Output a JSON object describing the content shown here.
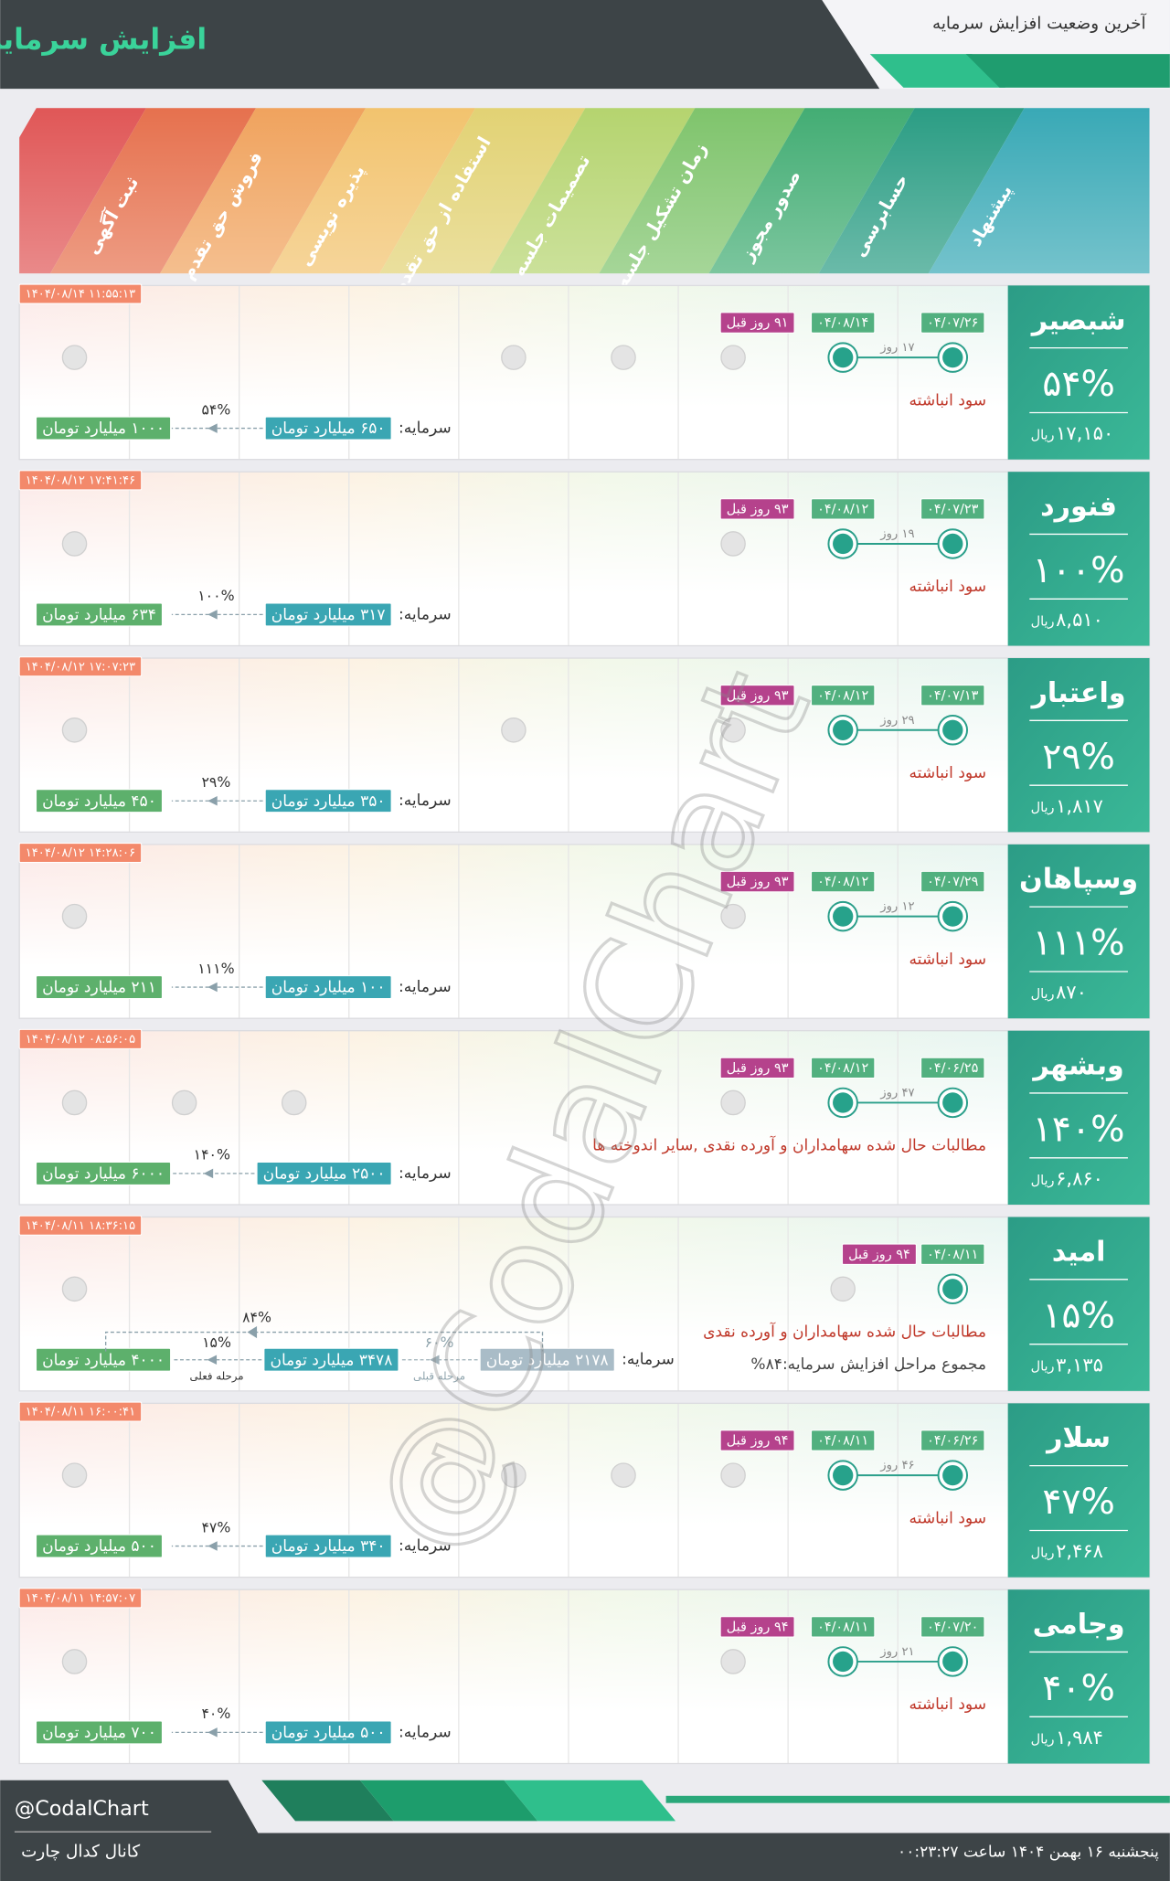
{
  "header": {
    "title": "افزایش سرمایه",
    "subtitle": "آخرین وضعیت افزایش سرمایه"
  },
  "stages": [
    "ثبت آگهی",
    "فروش حق تقدم",
    "پذیره نویسی",
    "استفاده از حق تقدم",
    "تصمیمات جلسه",
    "زمان تشکیل جلسه",
    "صدور مجوز",
    "حسابرسی",
    "پیشنهاد"
  ],
  "capital_label": "سرمایه:",
  "price_unit": "ریال",
  "watermark": "@CodalChart",
  "companies": [
    {
      "name": "شبصیر",
      "percent": "۵۴%",
      "price": "۱۷,۱۵۰",
      "timestamp": "۱۴۰۴/۰۸/۱۴ ۱۱:۵۵:۱۳",
      "start_date": "۰۴/۰۷/۲۶",
      "end_date": "۰۴/۰۸/۱۴",
      "ago": "۹۱ روز قبل",
      "days": "۱۷ روز",
      "source": "سود انباشته",
      "capital": {
        "from": "۶۵۰ میلیارد تومان",
        "to": "۱۰۰۰ میلیارد تومان",
        "percent": "۵۴%"
      }
    },
    {
      "name": "فنورد",
      "percent": "۱۰۰%",
      "price": "۸,۵۱۰",
      "timestamp": "۱۴۰۴/۰۸/۱۲ ۱۷:۴۱:۴۶",
      "start_date": "۰۴/۰۷/۲۳",
      "end_date": "۰۴/۰۸/۱۲",
      "ago": "۹۳ روز قبل",
      "days": "۱۹ روز",
      "source": "سود انباشته",
      "capital": {
        "from": "۳۱۷ میلیارد تومان",
        "to": "۶۳۴ میلیارد تومان",
        "percent": "۱۰۰%"
      }
    },
    {
      "name": "واعتبار",
      "percent": "۲۹%",
      "price": "۱,۸۱۷",
      "timestamp": "۱۴۰۴/۰۸/۱۲ ۱۷:۰۷:۲۳",
      "start_date": "۰۴/۰۷/۱۳",
      "end_date": "۰۴/۰۸/۱۲",
      "ago": "۹۳ روز قبل",
      "days": "۲۹ روز",
      "source": "سود انباشته",
      "capital": {
        "from": "۳۵۰ میلیارد تومان",
        "to": "۴۵۰ میلیارد تومان",
        "percent": "۲۹%"
      }
    },
    {
      "name": "وسپاهان",
      "percent": "۱۱۱%",
      "price": "۸۷۰",
      "timestamp": "۱۴۰۴/۰۸/۱۲ ۱۴:۲۸:۰۶",
      "start_date": "۰۴/۰۷/۲۹",
      "end_date": "۰۴/۰۸/۱۲",
      "ago": "۹۳ روز قبل",
      "days": "۱۲ روز",
      "source": "سود انباشته",
      "capital": {
        "from": "۱۰۰ میلیارد تومان",
        "to": "۲۱۱ میلیارد تومان",
        "percent": "۱۱۱%"
      }
    },
    {
      "name": "وبشهر",
      "percent": "۱۴۰%",
      "price": "۶,۸۶۰",
      "timestamp": "۱۴۰۴/۰۸/۱۲ ۰۸:۵۶:۰۵",
      "start_date": "۰۴/۰۶/۲۵",
      "end_date": "۰۴/۰۸/۱۲",
      "ago": "۹۳ روز قبل",
      "days": "۴۷ روز",
      "source": "مطالبات حال شده سهامداران و آورده نقدی ,سایر اندوخته ها",
      "capital": {
        "from": "۲۵۰۰ میلیارد تومان",
        "to": "۶۰۰۰ میلیارد تومان",
        "percent": "۱۴۰%"
      }
    },
    {
      "name": "امید",
      "percent": "۱۵%",
      "price": "۳,۱۳۵",
      "timestamp": "۱۴۰۴/۰۸/۱۱ ۱۸:۳۶:۱۵",
      "start_date": "۰۴/۰۸/۱۱",
      "ago": "۹۴ روز قبل",
      "source": "مطالبات حال شده سهامداران و آورده نقدی",
      "total_note": "مجموع مراحل افزایش سرمایه:۸۴%",
      "capital": {
        "stages": [
          "۲۱۷۸ میلیارد تومان",
          "۳۴۷۸ میلیارد تومان",
          "۴۰۰۰ میلیارد تومان"
        ],
        "steps": [
          {
            "percent": "۶۰%",
            "label": "مرحله قبلی"
          },
          {
            "percent": "۱۵%",
            "label": "مرحله فعلی"
          }
        ],
        "total_percent": "۸۴%"
      }
    },
    {
      "name": "سلار",
      "percent": "۴۷%",
      "price": "۲,۴۶۸",
      "timestamp": "۱۴۰۴/۰۸/۱۱ ۱۶:۰۰:۴۱",
      "start_date": "۰۴/۰۶/۲۶",
      "end_date": "۰۴/۰۸/۱۱",
      "ago": "۹۴ روز قبل",
      "days": "۴۶ روز",
      "source": "سود انباشته",
      "capital": {
        "from": "۳۴۰ میلیارد تومان",
        "to": "۵۰۰ میلیارد تومان",
        "percent": "۴۷%"
      }
    },
    {
      "name": "وجامی",
      "percent": "۴۰%",
      "price": "۱,۹۸۴",
      "timestamp": "۱۴۰۴/۰۸/۱۱ ۱۴:۵۷:۰۷",
      "start_date": "۰۴/۰۷/۲۰",
      "end_date": "۰۴/۰۸/۱۱",
      "ago": "۹۴ روز قبل",
      "days": "۲۱ روز",
      "source": "سود انباشته",
      "capital": {
        "from": "۵۰۰ میلیارد تومان",
        "to": "۷۰۰ میلیارد تومان",
        "percent": "۴۰%"
      }
    }
  ],
  "footer": {
    "handle": "@CodalChart",
    "channel": "کانال کدال چارت",
    "datetime": "پنجشنبه ۱۶ بهمن ۱۴۰۴ ساعت ۰۰:۲۳:۲۷"
  }
}
